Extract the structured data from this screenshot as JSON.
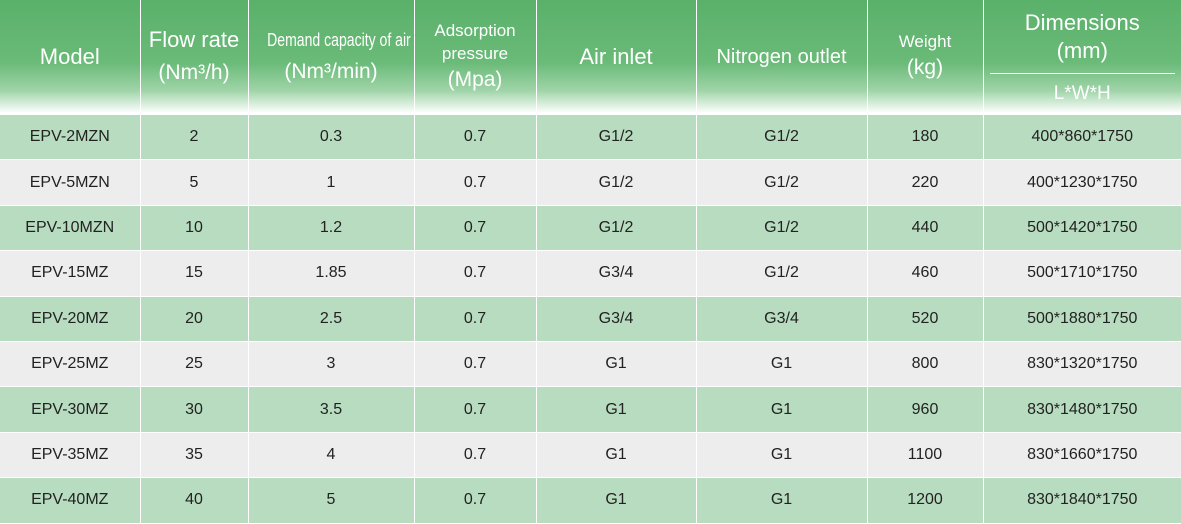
{
  "colors": {
    "header_green": "#5ab16a",
    "row_green": "#b8dcc0",
    "row_gray": "#ededed"
  },
  "header": {
    "model": "Model",
    "flow_rate": "Flow rate",
    "flow_rate_unit": "(Nm³/h)",
    "demand": "Demand capacity of air",
    "demand_unit": "(Nm³/min)",
    "adsorption_1": "Adsorption",
    "adsorption_2": "pressure",
    "adsorption_unit": "(Mpa)",
    "air_inlet": "Air inlet",
    "nitrogen_outlet": "Nitrogen outlet",
    "weight": "Weight",
    "weight_unit": "(kg)",
    "dimensions": "Dimensions",
    "dimensions_unit": "(mm)",
    "dimensions_format": "L*W*H"
  },
  "rows": [
    {
      "model": "EPV-2MZN",
      "flow": "2",
      "demand": "0.3",
      "pressure": "0.7",
      "air_inlet": "G1/2",
      "n2_outlet": "G1/2",
      "weight": "180",
      "dims": "400*860*1750"
    },
    {
      "model": "EPV-5MZN",
      "flow": "5",
      "demand": "1",
      "pressure": "0.7",
      "air_inlet": "G1/2",
      "n2_outlet": "G1/2",
      "weight": "220",
      "dims": "400*1230*1750"
    },
    {
      "model": "EPV-10MZN",
      "flow": "10",
      "demand": "1.2",
      "pressure": "0.7",
      "air_inlet": "G1/2",
      "n2_outlet": "G1/2",
      "weight": "440",
      "dims": "500*1420*1750"
    },
    {
      "model": "EPV-15MZ",
      "flow": "15",
      "demand": "1.85",
      "pressure": "0.7",
      "air_inlet": "G3/4",
      "n2_outlet": "G1/2",
      "weight": "460",
      "dims": "500*1710*1750"
    },
    {
      "model": "EPV-20MZ",
      "flow": "20",
      "demand": "2.5",
      "pressure": "0.7",
      "air_inlet": "G3/4",
      "n2_outlet": "G3/4",
      "weight": "520",
      "dims": "500*1880*1750"
    },
    {
      "model": "EPV-25MZ",
      "flow": "25",
      "demand": "3",
      "pressure": "0.7",
      "air_inlet": "G1",
      "n2_outlet": "G1",
      "weight": "800",
      "dims": "830*1320*1750"
    },
    {
      "model": "EPV-30MZ",
      "flow": "30",
      "demand": "3.5",
      "pressure": "0.7",
      "air_inlet": "G1",
      "n2_outlet": "G1",
      "weight": "960",
      "dims": "830*1480*1750"
    },
    {
      "model": "EPV-35MZ",
      "flow": "35",
      "demand": "4",
      "pressure": "0.7",
      "air_inlet": "G1",
      "n2_outlet": "G1",
      "weight": "1100",
      "dims": "830*1660*1750"
    },
    {
      "model": "EPV-40MZ",
      "flow": "40",
      "demand": "5",
      "pressure": "0.7",
      "air_inlet": "G1",
      "n2_outlet": "G1",
      "weight": "1200",
      "dims": "830*1840*1750"
    }
  ]
}
